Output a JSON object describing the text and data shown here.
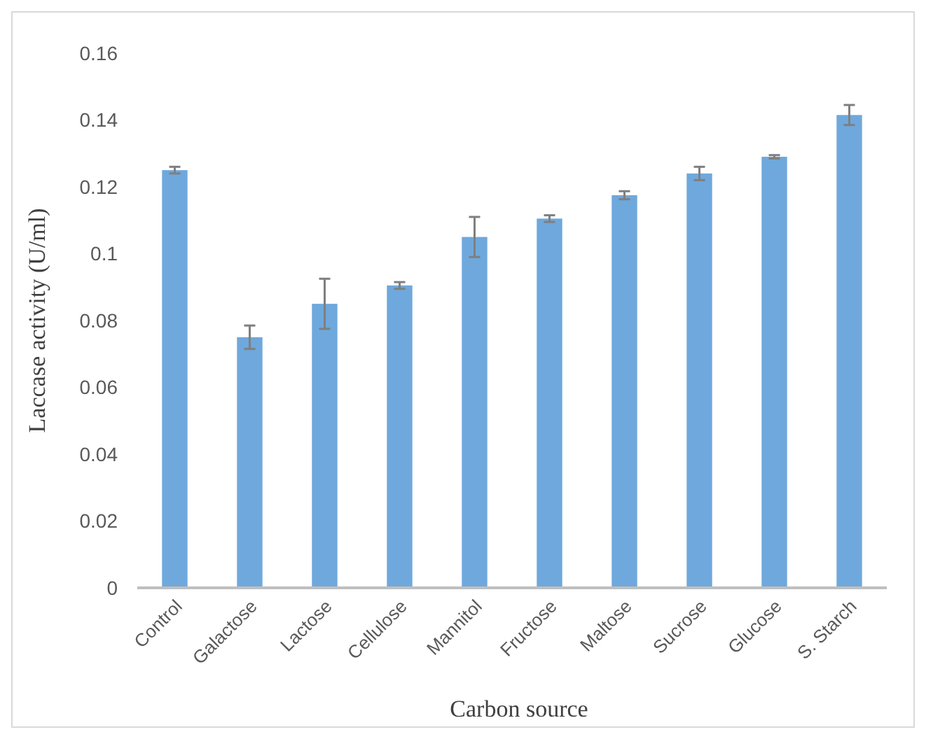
{
  "chart_data": {
    "type": "bar",
    "xlabel": "Carbon source",
    "ylabel": "Laccase activity (U/ml)",
    "categories": [
      "Control",
      "Galactose",
      "Lactose",
      "Cellulose",
      "Mannitol",
      "Fructose",
      "Maltose",
      "Sucrose",
      "Glucose",
      "S. Starch"
    ],
    "values": [
      0.125,
      0.075,
      0.085,
      0.0905,
      0.105,
      0.1105,
      0.1175,
      0.124,
      0.129,
      0.1415
    ],
    "errors": [
      0.001,
      0.0035,
      0.0075,
      0.001,
      0.006,
      0.001,
      0.0012,
      0.002,
      0.0005,
      0.003
    ],
    "color": "#6fa8dc",
    "ylim": [
      0,
      0.16
    ],
    "yticks": [
      0,
      0.02,
      0.04,
      0.06,
      0.08,
      {
        "value": 0.1,
        "label": "0.1"
      },
      0.12,
      0.14,
      0.16
    ],
    "grid": false
  }
}
